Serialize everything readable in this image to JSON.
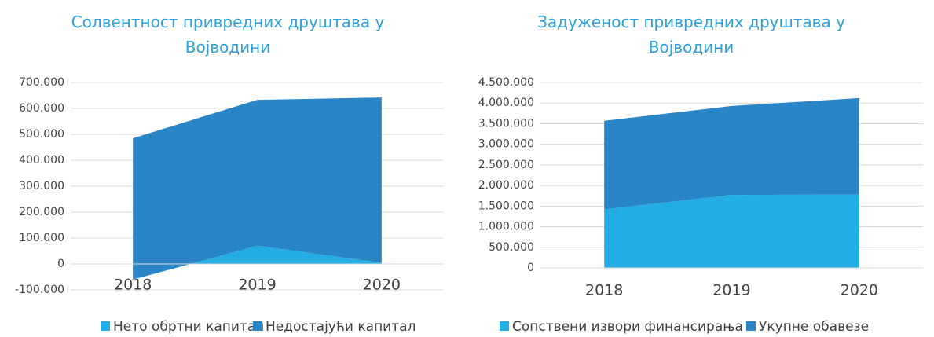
{
  "chart_data": [
    {
      "type": "area",
      "title": "Солвентност привредних друштава у Војводини",
      "categories": [
        "2018",
        "2019",
        "2020"
      ],
      "series": [
        {
          "name": "Нето обртни капитал",
          "color": "#22aee4",
          "values": [
            -60000,
            70000,
            5000
          ]
        },
        {
          "name": "Недостајући капитал",
          "color": "#2a85c7",
          "values": [
            545000,
            563000,
            637000
          ]
        }
      ],
      "stacked": true,
      "ylim": [
        -100000,
        700000
      ],
      "yticks": [
        {
          "value": -100000,
          "label": "-100.000"
        },
        0,
        {
          "value": 100000,
          "label": "100.000"
        },
        {
          "value": 200000,
          "label": "200.000"
        },
        {
          "value": 300000,
          "label": "300.000"
        },
        {
          "value": 400000,
          "label": "400.000"
        },
        {
          "value": 500000,
          "label": "500.000"
        },
        {
          "value": 600000,
          "label": "600.000"
        },
        {
          "value": 700000,
          "label": "700.000"
        }
      ],
      "grid": true,
      "legend": "bottom"
    },
    {
      "type": "area",
      "title": "Задуженост привредних друштава у Војводини",
      "categories": [
        "2018",
        "2019",
        "2020"
      ],
      "series": [
        {
          "name": "Сопствени извори финансирања",
          "color": "#22aee4",
          "values": [
            1420000,
            1770000,
            1780000
          ]
        },
        {
          "name": "Укупне обавезе",
          "color": "#2a85c7",
          "values": [
            2150000,
            2160000,
            2340000
          ]
        }
      ],
      "stacked": true,
      "ylim": [
        0,
        4500000
      ],
      "yticks": [
        0,
        {
          "value": 500000,
          "label": "500.000"
        },
        {
          "value": 1000000,
          "label": "1.000.000"
        },
        {
          "value": 1500000,
          "label": "1.500.000"
        },
        {
          "value": 2000000,
          "label": "2.000.000"
        },
        {
          "value": 2500000,
          "label": "2.500.000"
        },
        {
          "value": 3000000,
          "label": "3.000.000"
        },
        {
          "value": 3500000,
          "label": "3.500.000"
        },
        {
          "value": 4000000,
          "label": "4.000.000"
        },
        {
          "value": 4500000,
          "label": "4.500.000"
        }
      ],
      "grid": true,
      "legend": "bottom"
    }
  ]
}
